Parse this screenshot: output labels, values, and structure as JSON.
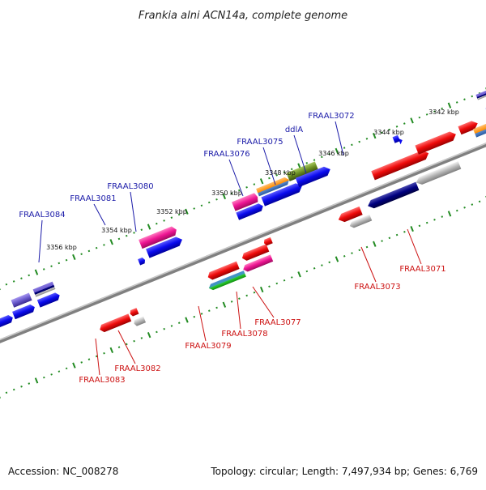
{
  "title": "Frankia alni ACN14a, complete genome",
  "accession": "Accession: NC_008278",
  "topology": "Topology: circular; Length: 7,497,934 bp; Genes: 6,769",
  "scale_labels": [
    "3342 kbp",
    "3344 kbp",
    "3346 kbp",
    "3348 kbp",
    "3350 kbp",
    "3352 kbp",
    "3354 kbp",
    "3356 kbp"
  ],
  "upper_labels": [
    {
      "id": "FRAAL3072",
      "color": "#1a1aa8"
    },
    {
      "id": "ddlA",
      "color": "#1a1aa8"
    },
    {
      "id": "FRAAL3075",
      "color": "#1a1aa8"
    },
    {
      "id": "FRAAL3076",
      "color": "#1a1aa8"
    },
    {
      "id": "FRAAL3080",
      "color": "#1a1aa8"
    },
    {
      "id": "FRAAL3081",
      "color": "#1a1aa8"
    },
    {
      "id": "FRAAL3084",
      "color": "#1a1aa8"
    }
  ],
  "lower_labels": [
    {
      "id": "FRAAL3071",
      "color": "#cc1111"
    },
    {
      "id": "FRAAL3073",
      "color": "#cc1111"
    },
    {
      "id": "FRAAL3077",
      "color": "#cc1111"
    },
    {
      "id": "FRAAL3078",
      "color": "#cc1111"
    },
    {
      "id": "FRAAL3079",
      "color": "#cc1111"
    },
    {
      "id": "FRAAL3082",
      "color": "#cc1111"
    },
    {
      "id": "FRAAL3083",
      "color": "#cc1111"
    }
  ],
  "colors": {
    "blue": "#0a0aee",
    "red": "#ee0a0a",
    "pink": "#ee1493",
    "navy": "#000080",
    "orange": "#ff8c00",
    "olive": "#6b8e23",
    "slate": "#6a5acd",
    "gray": "#aaaaaa",
    "tick": "#228b22",
    "backbone": "#808080"
  }
}
